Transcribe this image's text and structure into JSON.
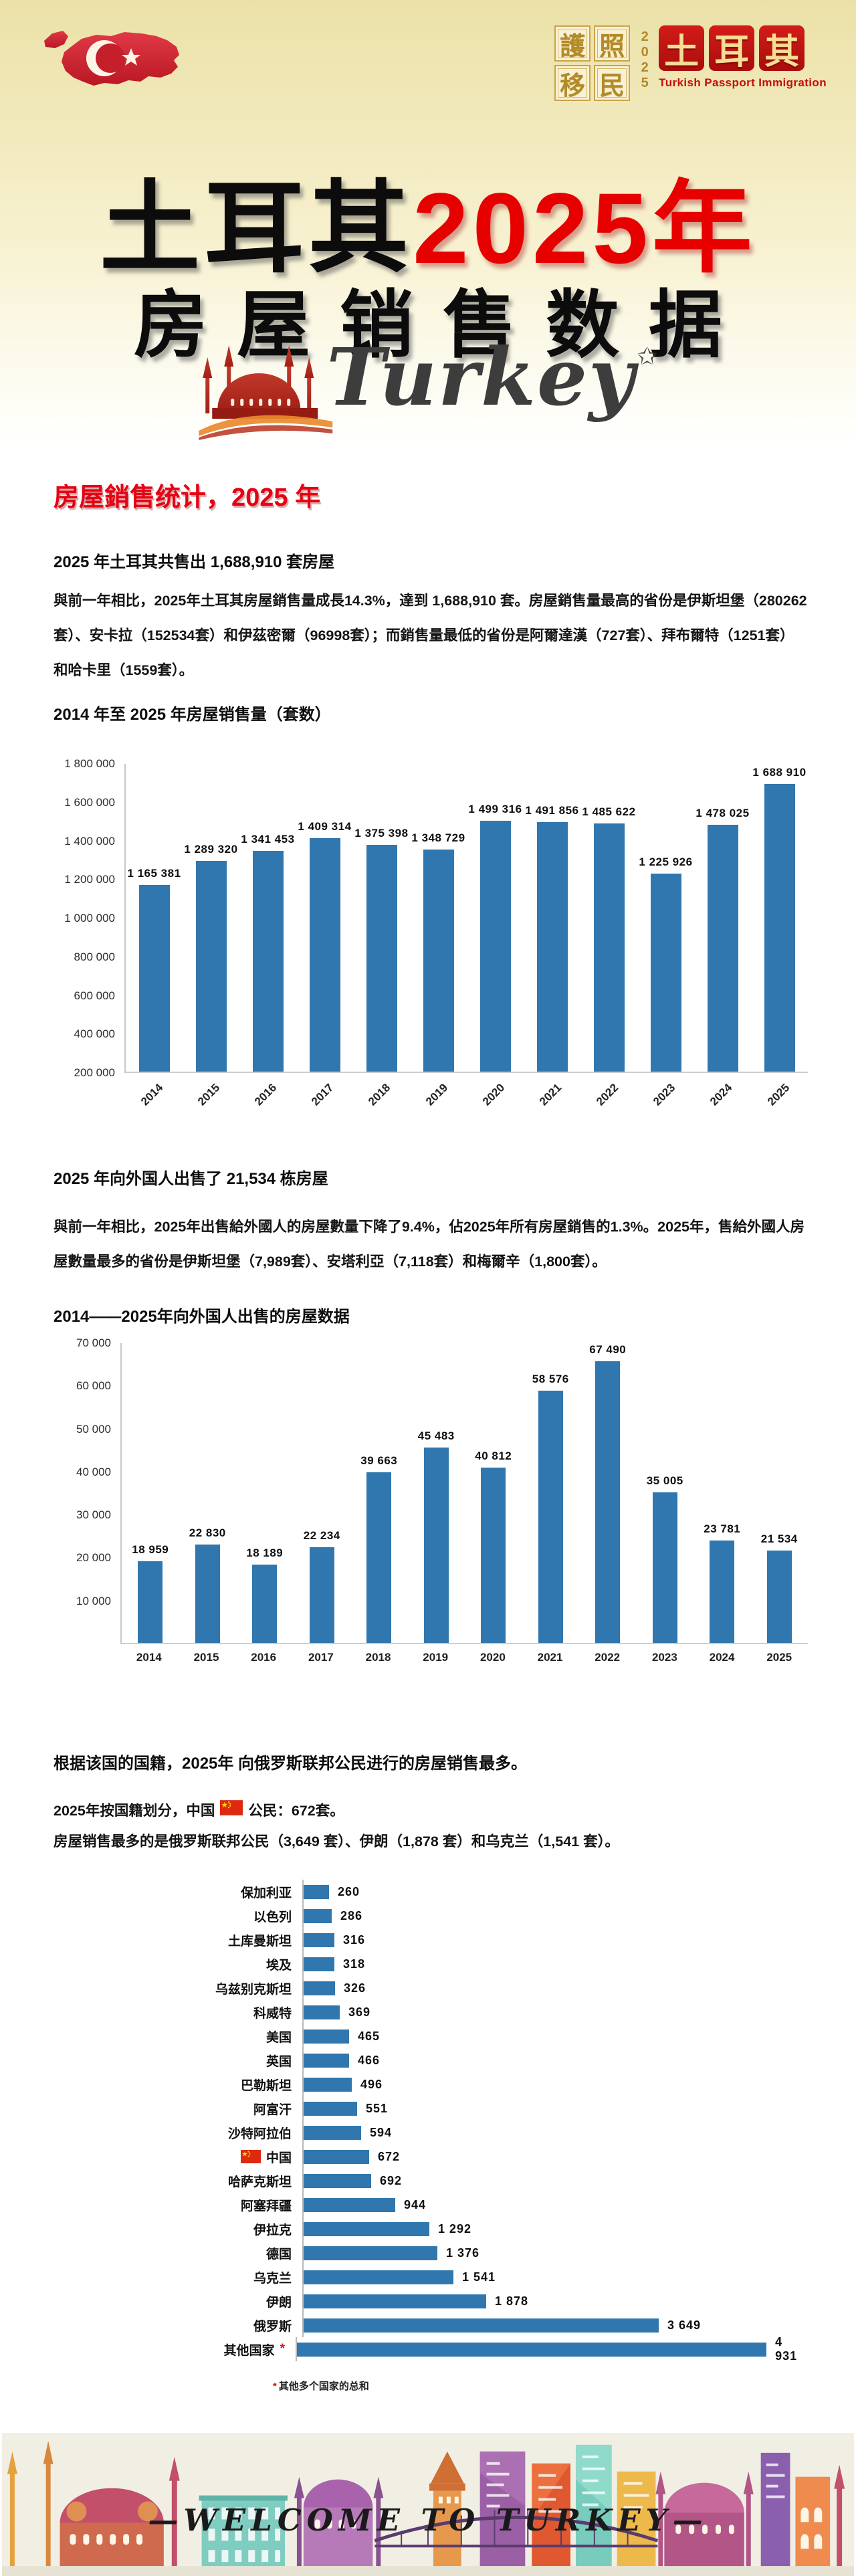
{
  "colors": {
    "bar_blue": "#2f77ae",
    "accent_red": "#e60012",
    "title_red": "#e60000",
    "logo_red": "#c31218",
    "map_red": "#cf1e2e"
  },
  "header": {
    "logo": {
      "grid_chars": [
        "護",
        "照",
        "移",
        "民"
      ],
      "year": "2025",
      "brand": [
        "土",
        "耳",
        "其"
      ],
      "tagline": "Turkish Passport Immigration"
    },
    "title_black": "土耳其",
    "title_red": "2025年",
    "title_line2": "房屋销售数据",
    "script_word": "Turkey",
    "script_star": "✩"
  },
  "intro": {
    "heading": "房屋銷售统计，2025 年",
    "subheading": "2025 年土耳其共售出 1,688,910 套房屋",
    "body": "與前一年相比，2025年土耳其房屋銷售量成長14.3%，達到 1,688,910 套。房屋銷售量最高的省份是伊斯坦堡（280262套）、安卡拉（152534套）和伊茲密爾（96998套）；而銷售量最低的省份是阿爾達漢（727套）、拜布爾特（1251套）和哈卡里（1559套）。"
  },
  "foreign": {
    "heading": "2025 年向外国人出售了 21,534 栋房屋",
    "body": "與前一年相比，2025年出售給外國人的房屋數量下降了9.4%，佔2025年所有房屋銷售的1.3%。2025年，售給外國人房屋數量最多的省份是伊斯坦堡（7,989套）、安塔利亞（7,118套）和梅爾辛（1,800套）。"
  },
  "nationality": {
    "heading": "根据该国的国籍，2025年 向俄罗斯联邦公民进行的房屋销售最多。",
    "line_china_pre": "2025年按国籍划分，中国",
    "line_china_post": "公民：672套。",
    "line_top": "房屋销售最多的是俄罗斯联邦公民（3,649 套）、伊朗（1,878 套）和乌克兰（1,541 套）。",
    "footnote_star": "*",
    "footnote": "其他多个国家的总和"
  },
  "footer": {
    "welcome": "—WELCOME TO TURKEY—"
  },
  "chart_data": [
    {
      "id": "sales-by-year",
      "type": "bar",
      "title": "2014 年至 2025 年房屋销售量（套数）",
      "categories": [
        "2014",
        "2015",
        "2016",
        "2017",
        "2018",
        "2019",
        "2020",
        "2021",
        "2022",
        "2023",
        "2024",
        "2025"
      ],
      "values": [
        1165381,
        1289320,
        1341453,
        1409314,
        1375398,
        1348729,
        1499316,
        1491856,
        1485622,
        1225926,
        1478025,
        1688910
      ],
      "value_labels": [
        "1 165 381",
        "1 289 320",
        "1 341 453",
        "1 409 314",
        "1 375 398",
        "1 348 729",
        "1 499 316",
        "1 491 856",
        "1 485 622",
        "1 225 926",
        "1 478 025",
        "1 688 910"
      ],
      "xlabel": "",
      "ylabel": "",
      "ylim": [
        200000,
        1800000
      ],
      "grid": false,
      "ytick_values": [
        1800000,
        1600000,
        1400000,
        1200000,
        1000000,
        800000,
        600000,
        400000,
        200000
      ],
      "ytick_labels": [
        "1 800 000",
        "1 600 000",
        "1 400 000",
        "1 200 000",
        "1 000 000",
        "800 000",
        "600 000",
        "400 000",
        "200 000"
      ]
    },
    {
      "id": "foreign-sales-by-year",
      "type": "bar",
      "title": "2014——2025年向外国人出售的房屋数据",
      "categories": [
        "2014",
        "2015",
        "2016",
        "2017",
        "2018",
        "2019",
        "2020",
        "2021",
        "2022",
        "2023",
        "2024",
        "2025"
      ],
      "values": [
        18959,
        22830,
        18189,
        22234,
        39663,
        45483,
        40812,
        58576,
        67490,
        35005,
        23781,
        21534
      ],
      "value_labels": [
        "18 959",
        "22 830",
        "18 189",
        "22 234",
        "39 663",
        "45 483",
        "40 812",
        "58 576",
        "67 490",
        "35 005",
        "23 781",
        "21 534"
      ],
      "xlabel": "",
      "ylabel": "",
      "ylim": [
        0,
        70000
      ],
      "grid": false,
      "ytick_values": [
        70000,
        60000,
        50000,
        40000,
        30000,
        20000,
        10000
      ],
      "ytick_labels": [
        "70 000",
        "60 000",
        "50 000",
        "40 000",
        "30 000",
        "20 000",
        "10 000"
      ]
    },
    {
      "id": "sales-by-nationality",
      "type": "bar-horizontal",
      "title": "",
      "categories": [
        "保加利亚",
        "以色列",
        "土库曼斯坦",
        "埃及",
        "乌兹别克斯坦",
        "科威特",
        "美国",
        "英国",
        "巴勒斯坦",
        "阿富汗",
        "沙特阿拉伯",
        "中国",
        "哈萨克斯坦",
        "阿塞拜疆",
        "伊拉克",
        "德国",
        "乌克兰",
        "伊朗",
        "俄罗斯",
        "其他国家"
      ],
      "values": [
        260,
        286,
        316,
        318,
        326,
        369,
        465,
        466,
        496,
        551,
        594,
        672,
        692,
        944,
        1292,
        1376,
        1541,
        1878,
        3649,
        4931
      ],
      "value_labels": [
        "260",
        "286",
        "316",
        "318",
        "326",
        "369",
        "465",
        "466",
        "496",
        "551",
        "594",
        "672",
        "692",
        "944",
        "1 292",
        "1 376",
        "1 541",
        "1 878",
        "3 649",
        "4 931"
      ],
      "xmax": 4931,
      "china_index": 11,
      "other_index": 19
    }
  ]
}
